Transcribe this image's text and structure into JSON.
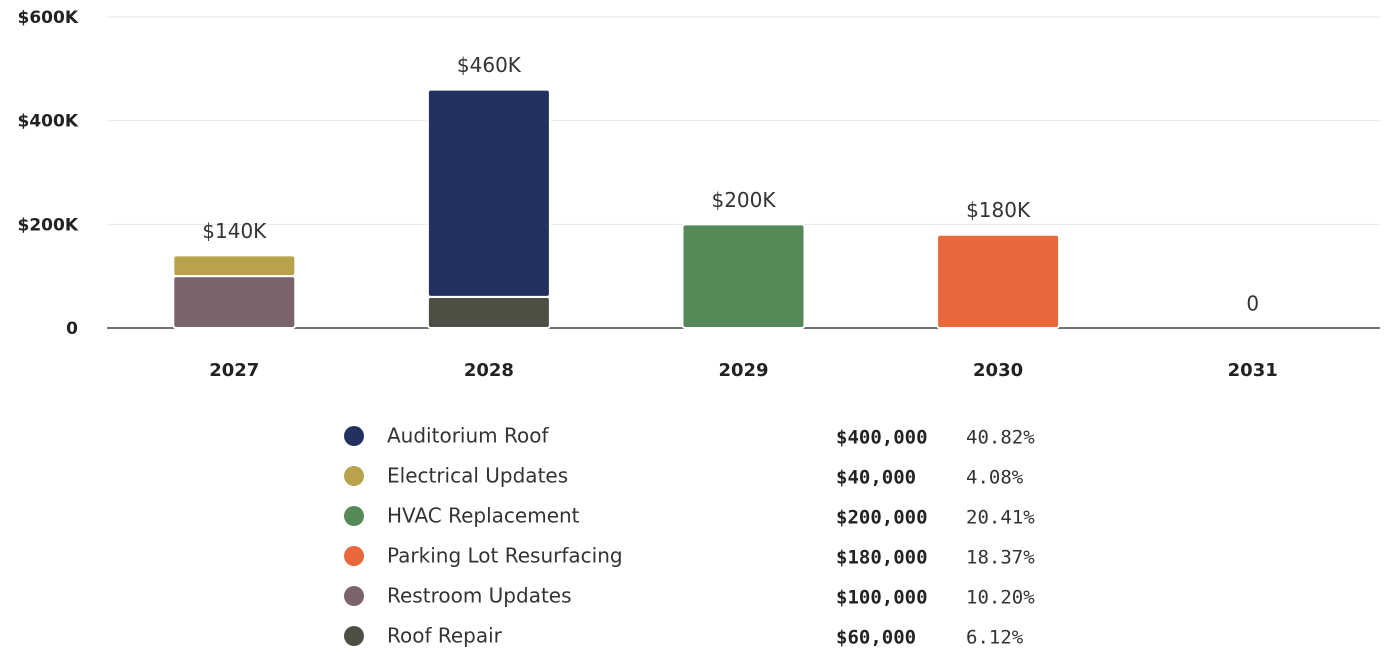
{
  "chart_data": {
    "type": "stacked_bar",
    "categories": [
      "2027",
      "2028",
      "2029",
      "2030",
      "2031"
    ],
    "series": [
      {
        "name": "Auditorium Roof",
        "color": "#22315f",
        "values": [
          0,
          400000,
          0,
          0,
          0
        ],
        "amount": "$400,000",
        "share": "40.82%"
      },
      {
        "name": "Electrical Updates",
        "color": "#b9a24c",
        "values": [
          40000,
          0,
          0,
          0,
          0
        ],
        "amount": "$40,000",
        "share": "4.08%"
      },
      {
        "name": "HVAC Replacement",
        "color": "#558a58",
        "values": [
          0,
          0,
          200000,
          0,
          0
        ],
        "amount": "$200,000",
        "share": "20.41%"
      },
      {
        "name": "Parking Lot Resurfacing",
        "color": "#e8683c",
        "values": [
          0,
          0,
          0,
          180000,
          0
        ],
        "amount": "$180,000",
        "share": "18.37%"
      },
      {
        "name": "Restroom Updates",
        "color": "#7a636a",
        "values": [
          100000,
          0,
          0,
          0,
          0
        ],
        "amount": "$100,000",
        "share": "10.20%"
      },
      {
        "name": "Roof Repair",
        "color": "#4d4f44",
        "values": [
          0,
          60000,
          0,
          0,
          0
        ],
        "amount": "$60,000",
        "share": "6.12%"
      }
    ],
    "totals": [
      140000,
      460000,
      200000,
      180000,
      0
    ],
    "total_labels": [
      "$140K",
      "$460K",
      "$200K",
      "$180K",
      "0"
    ],
    "ylim": [
      0,
      600000
    ],
    "yticks": [
      0,
      {
        "value": 200000,
        "label": "$200K"
      },
      {
        "value": 400000,
        "label": "$400K"
      },
      {
        "value": 600000,
        "label": "$600K"
      }
    ],
    "grid": true
  }
}
